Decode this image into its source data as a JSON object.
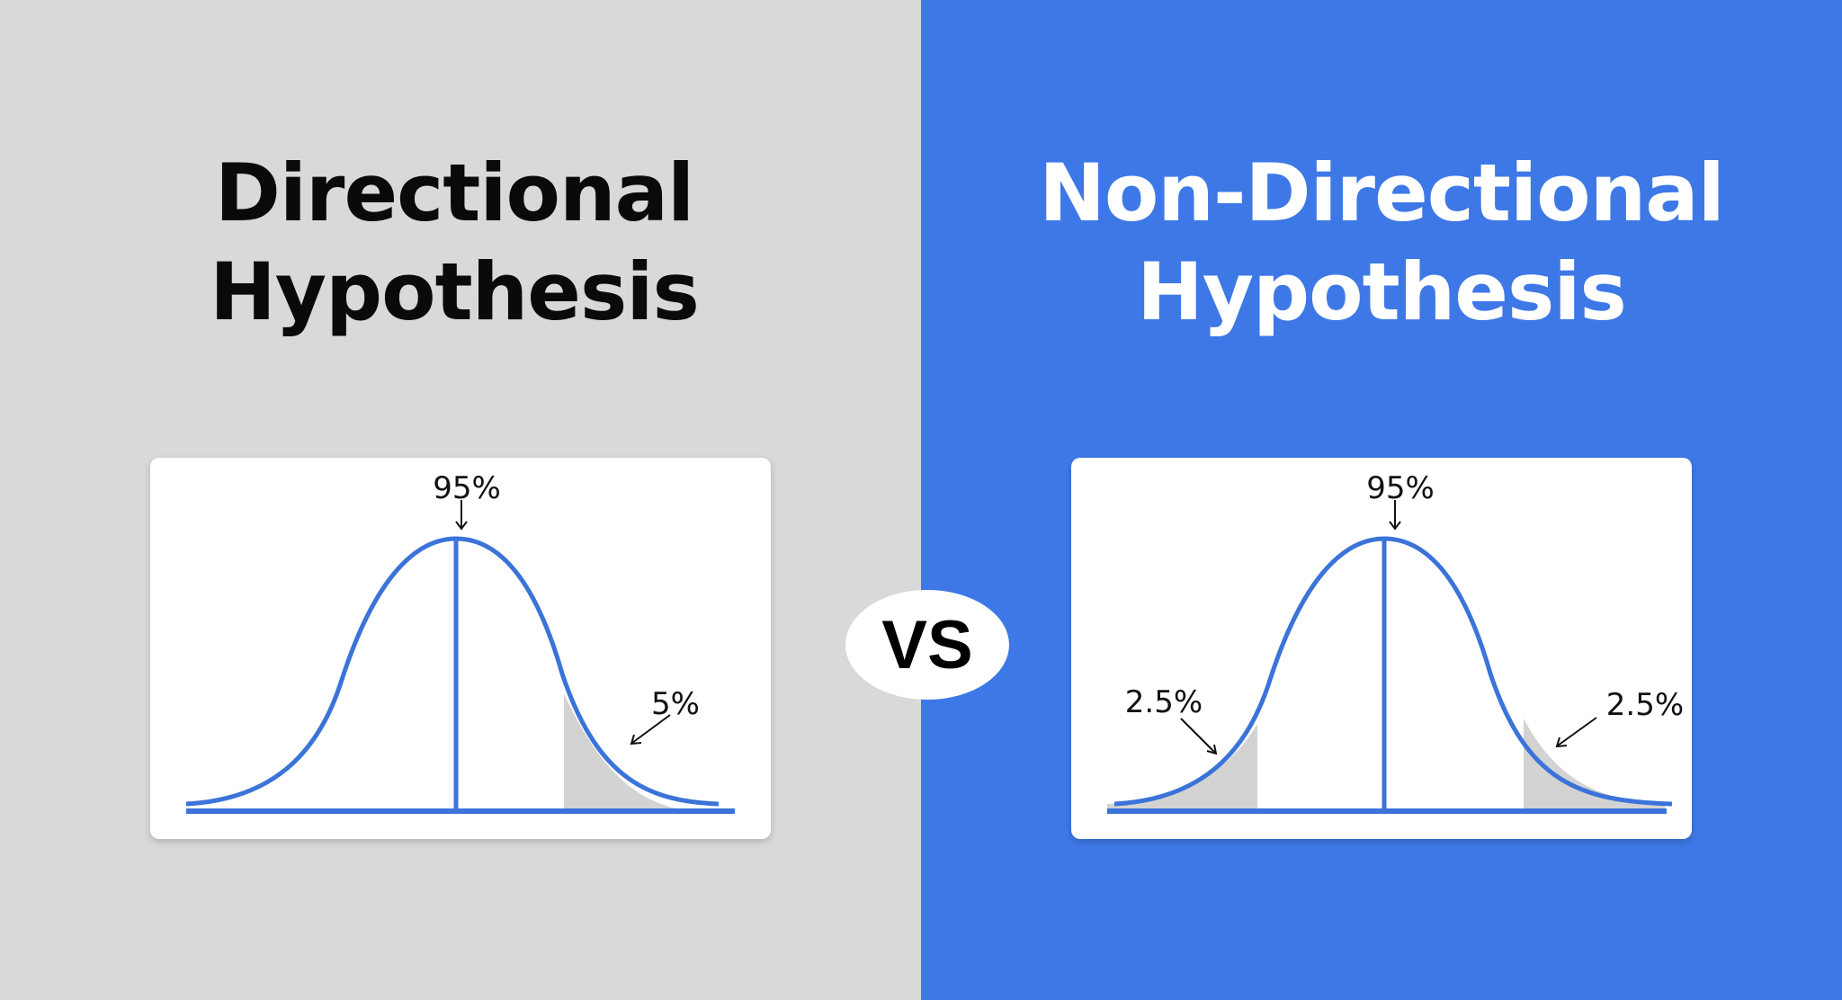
{
  "colors": {
    "left_bg": "#d9d9d9",
    "right_bg": "#3d78e6",
    "curve": "#3b73d9",
    "tail_shade": "#d3d3d3",
    "card_bg": "#ffffff"
  },
  "left": {
    "title_line1": "Directional",
    "title_line2": "Hypothesis",
    "diagram": {
      "center_label": "95%",
      "tail_right_label": "5%"
    }
  },
  "vs_label": "VS",
  "right": {
    "title_line1": "Non-Directional",
    "title_line2": "Hypothesis",
    "diagram": {
      "center_label": "95%",
      "tail_left_label": "2.5%",
      "tail_right_label": "2.5%"
    }
  }
}
